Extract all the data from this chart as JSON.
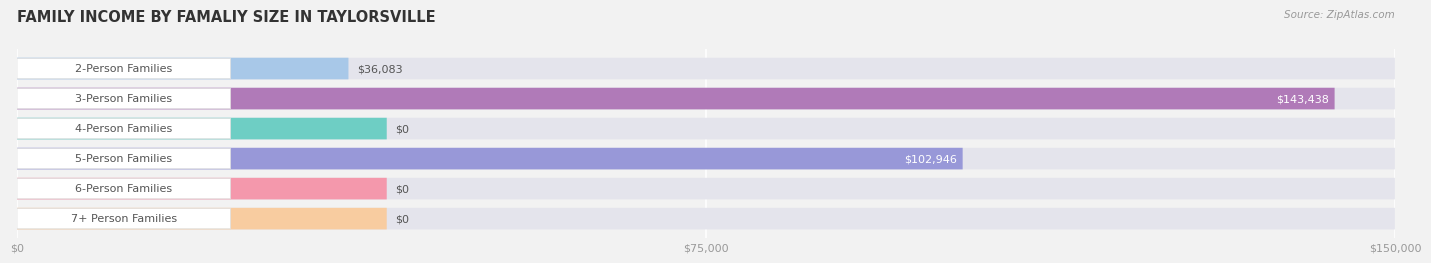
{
  "title": "FAMILY INCOME BY FAMALIY SIZE IN TAYLORSVILLE",
  "source": "Source: ZipAtlas.com",
  "categories": [
    "2-Person Families",
    "3-Person Families",
    "4-Person Families",
    "5-Person Families",
    "6-Person Families",
    "7+ Person Families"
  ],
  "values": [
    36083,
    143438,
    0,
    102946,
    0,
    0
  ],
  "bar_colors": [
    "#a8c8e8",
    "#b07ab8",
    "#6ecec4",
    "#9898d8",
    "#f498ac",
    "#f8cca0"
  ],
  "bar_label_colors": [
    "#555555",
    "#ffffff",
    "#555555",
    "#ffffff",
    "#555555",
    "#555555"
  ],
  "label_values": [
    "$36,083",
    "$143,438",
    "$0",
    "$102,946",
    "$0",
    "$0"
  ],
  "xlim": [
    0,
    150000
  ],
  "xticks": [
    0,
    75000,
    150000
  ],
  "xticklabels": [
    "$0",
    "$75,000",
    "$150,000"
  ],
  "background_color": "#f2f2f2",
  "bar_bg_color": "#e4e4ec",
  "title_fontsize": 10.5,
  "label_fontsize": 8,
  "value_fontsize": 8,
  "source_fontsize": 7.5,
  "bar_height": 0.72,
  "zero_bar_extra": 17000
}
